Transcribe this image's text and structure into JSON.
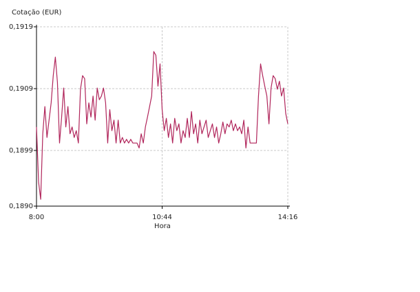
{
  "chart_data": {
    "type": "line",
    "title": "Cotação (EUR)",
    "x_label": "Hora",
    "color": "#b0245a",
    "grid": true,
    "categories": [
      "8:00",
      null,
      null,
      null,
      null,
      null,
      null,
      null,
      null,
      null,
      null,
      null,
      null,
      null,
      null,
      null,
      null,
      null,
      null,
      null,
      null,
      null,
      null,
      null,
      null,
      null,
      null,
      null,
      null,
      null,
      null,
      null,
      null,
      null,
      null,
      null,
      null,
      null,
      null,
      null,
      null,
      null,
      null,
      null,
      null,
      null,
      null,
      null,
      null,
      null,
      null,
      null,
      null,
      null,
      null,
      null,
      null,
      null,
      null,
      null,
      "10:44",
      null,
      null,
      null,
      null,
      null,
      null,
      null,
      null,
      null,
      null,
      null,
      null,
      null,
      null,
      null,
      null,
      null,
      null,
      null,
      null,
      null,
      null,
      null,
      null,
      null,
      null,
      null,
      null,
      null,
      null,
      null,
      null,
      null,
      null,
      null,
      null,
      null,
      null,
      null,
      null,
      null,
      null,
      null,
      null,
      null,
      null,
      null,
      null,
      null,
      null,
      null,
      null,
      null,
      null,
      null,
      null,
      null,
      null,
      null,
      "14:16"
    ],
    "values": [
      0.19028,
      0.18939,
      0.18911,
      0.19017,
      0.19061,
      0.19011,
      0.19039,
      0.19067,
      0.19111,
      0.19141,
      0.191,
      0.19002,
      0.19044,
      0.19091,
      0.19028,
      0.19061,
      0.19017,
      0.19028,
      0.19011,
      0.19022,
      0.19002,
      0.19089,
      0.19111,
      0.19106,
      0.19033,
      0.19067,
      0.19044,
      0.19078,
      0.19039,
      0.19091,
      0.19072,
      0.19078,
      0.19091,
      0.19067,
      0.19002,
      0.19056,
      0.19022,
      0.19039,
      0.19002,
      0.19039,
      0.19002,
      0.19011,
      0.19002,
      0.19008,
      0.19002,
      0.19008,
      0.19002,
      0.19002,
      0.19002,
      0.18994,
      0.19017,
      0.19002,
      0.19028,
      0.19044,
      0.19061,
      0.19078,
      0.1915,
      0.19144,
      0.19094,
      0.1913,
      0.19056,
      0.19022,
      0.19042,
      0.19011,
      0.19033,
      0.19002,
      0.19042,
      0.19022,
      0.19033,
      0.19002,
      0.19022,
      0.19011,
      0.19042,
      0.19011,
      0.19053,
      0.19017,
      0.19033,
      0.19002,
      0.19039,
      0.19017,
      0.19028,
      0.19039,
      0.19011,
      0.19022,
      0.19033,
      0.19011,
      0.19028,
      0.19002,
      0.19017,
      0.19036,
      0.19017,
      0.19033,
      0.19028,
      0.19039,
      0.19022,
      0.19033,
      0.19022,
      0.19028,
      0.19017,
      0.19039,
      0.18994,
      0.19028,
      0.19002,
      0.19002,
      0.19002,
      0.19002,
      0.19078,
      0.1913,
      0.19111,
      0.19094,
      0.19078,
      0.19033,
      0.19091,
      0.19111,
      0.19106,
      0.19089,
      0.19102,
      0.19078,
      0.19091,
      0.1905,
      0.19033
    ],
    "ylim": [
      0.189,
      0.1919
    ],
    "yticks": [
      {
        "value": 0.189,
        "label": "0,1890"
      },
      {
        "value": 0.1899,
        "label": "0,1899"
      },
      {
        "value": 0.1909,
        "label": "0,1909"
      },
      {
        "value": 0.1919,
        "label": "0,1919"
      }
    ]
  }
}
